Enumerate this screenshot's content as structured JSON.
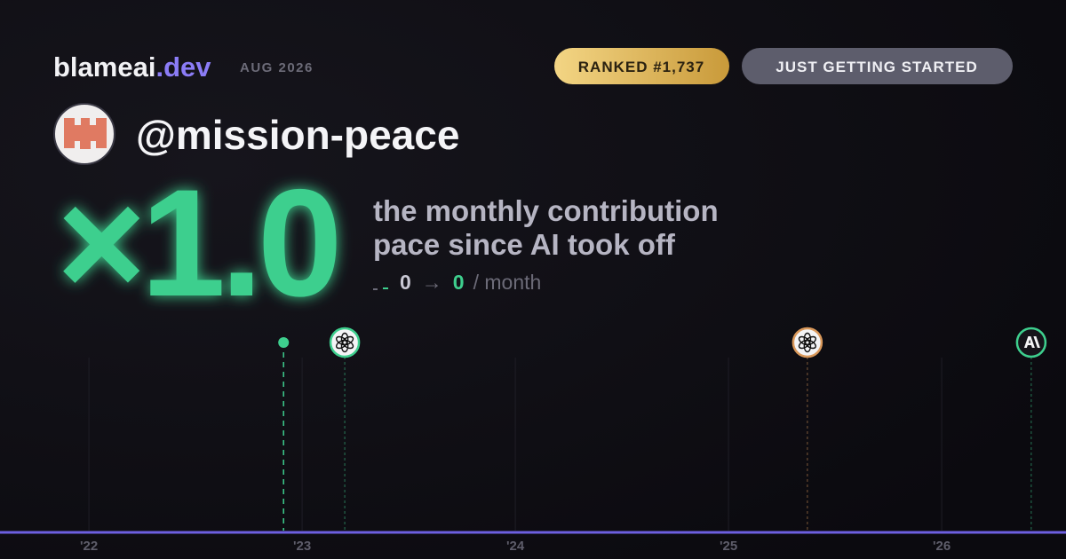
{
  "header": {
    "brand": "blameai",
    "brand_suffix": ".dev",
    "date": "AUG 2026",
    "rank_badge": "RANKED #1,737",
    "status_badge": "JUST GETTING STARTED"
  },
  "profile": {
    "username": "@mission-peace"
  },
  "hero": {
    "multiplier": "×1.0",
    "description_line_1": "the monthly contribution",
    "description_line_2": "pace since AI took off",
    "before": 0,
    "arrow": "→",
    "after": 0,
    "unit": "/ month"
  },
  "timeline": {
    "xlim": [
      2021.583,
      2026.583
    ],
    "xticks": [
      {
        "value": 2022,
        "label": "'22"
      },
      {
        "value": 2023,
        "label": "'23"
      },
      {
        "value": 2024,
        "label": "'24"
      },
      {
        "value": 2025,
        "label": "'25"
      },
      {
        "value": 2026,
        "label": "'26"
      }
    ],
    "events": [
      {
        "x": 2022.913,
        "icon": "dot",
        "color": "#3ecf8e"
      },
      {
        "x": 2023.2,
        "icon": "openai",
        "color": "#3ecf8e"
      },
      {
        "x": 2025.37,
        "icon": "openai",
        "color": "#d9985a"
      },
      {
        "x": 2026.42,
        "icon": "anthropic",
        "color": "#3ecf8e"
      }
    ],
    "axis_color": "#6d5fe0"
  }
}
